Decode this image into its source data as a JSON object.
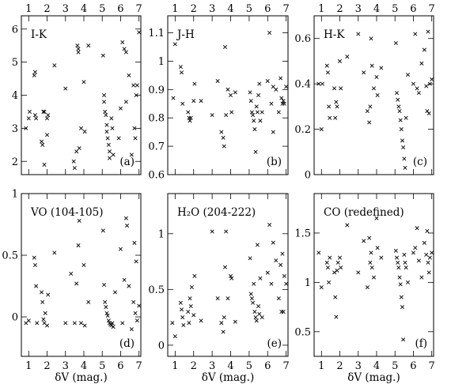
{
  "chart_data": [
    {
      "type": "scatter",
      "panel_label": "(a)",
      "title": "I-K",
      "xlabel": "",
      "xlim": [
        0.6,
        7.1
      ],
      "ylim": [
        1.6,
        6.4
      ],
      "yticks": [
        2,
        3,
        4,
        5,
        6
      ],
      "ytick_labels": [
        "2",
        "3",
        "4",
        "5",
        "6"
      ],
      "x": [
        0.85,
        1.0,
        1.05,
        1.3,
        1.35,
        1.35,
        1.4,
        1.7,
        1.75,
        1.8,
        1.85,
        1.85,
        2.0,
        2.05,
        2.0,
        2.4,
        3.0,
        3.45,
        3.5,
        3.6,
        3.65,
        3.7,
        3.7,
        3.75,
        3.85,
        4.0,
        4.05,
        4.25,
        5.05,
        5.1,
        5.1,
        5.15,
        5.2,
        5.25,
        5.25,
        5.3,
        5.35,
        5.4,
        5.4,
        5.5,
        5.55,
        5.6,
        5.9,
        6.0,
        6.1,
        6.2,
        6.3,
        6.3,
        6.45,
        6.6,
        6.7,
        6.75,
        6.8,
        6.85,
        6.9,
        7.0
      ],
      "y": [
        3.0,
        3.3,
        3.5,
        4.6,
        4.7,
        3.4,
        3.3,
        2.6,
        2.5,
        3.5,
        3.5,
        1.9,
        3.3,
        3.4,
        2.8,
        4.9,
        4.2,
        2.0,
        1.8,
        2.3,
        5.5,
        5.4,
        5.3,
        2.4,
        3.0,
        4.4,
        2.9,
        5.5,
        5.2,
        4.0,
        3.8,
        3.5,
        3.4,
        3.1,
        2.9,
        2.7,
        2.5,
        2.3,
        2.1,
        3.3,
        3.0,
        2.2,
        2.7,
        3.6,
        5.6,
        5.4,
        5.3,
        3.8,
        4.6,
        2.2,
        4.3,
        3.0,
        2.7,
        4.0,
        4.3,
        5.9
      ]
    },
    {
      "type": "scatter",
      "panel_label": "(b)",
      "title": "J-H",
      "xlabel": "",
      "xlim": [
        0.6,
        7.1
      ],
      "ylim": [
        0.6,
        1.16
      ],
      "yticks": [
        0.6,
        0.7,
        0.8,
        0.9,
        1.0,
        1.1
      ],
      "ytick_labels": [
        "0.6",
        "0.7",
        "0.8",
        "0.9",
        "1",
        "1.1"
      ],
      "x": [
        0.9,
        1.0,
        1.3,
        1.35,
        1.4,
        1.7,
        1.75,
        1.8,
        1.85,
        2.0,
        2.05,
        2.4,
        3.0,
        3.3,
        3.5,
        3.6,
        3.65,
        3.7,
        3.75,
        3.85,
        4.0,
        4.05,
        4.25,
        5.05,
        5.1,
        5.15,
        5.2,
        5.25,
        5.3,
        5.35,
        5.4,
        5.45,
        5.5,
        5.55,
        5.6,
        5.7,
        6.0,
        6.1,
        6.2,
        6.3,
        6.3,
        6.45,
        6.6,
        6.7,
        6.75,
        6.8,
        6.85,
        6.9,
        7.0
      ],
      "y": [
        0.87,
        1.06,
        0.98,
        0.96,
        0.85,
        0.82,
        0.8,
        0.79,
        0.8,
        0.86,
        0.92,
        0.86,
        0.81,
        0.93,
        0.75,
        0.73,
        0.7,
        1.05,
        0.81,
        0.9,
        0.88,
        0.82,
        0.89,
        0.89,
        0.86,
        0.82,
        0.81,
        0.79,
        0.76,
        0.68,
        0.84,
        0.82,
        0.88,
        0.92,
        0.79,
        0.82,
        0.93,
        1.1,
        0.85,
        0.91,
        0.75,
        0.9,
        0.82,
        0.94,
        0.87,
        0.85,
        0.86,
        0.85,
        0.91
      ]
    },
    {
      "type": "scatter",
      "panel_label": "(c)",
      "title": "H-K",
      "xlabel": "",
      "xlim": [
        0.6,
        7.1
      ],
      "ylim": [
        0.0,
        0.7
      ],
      "yticks": [
        0,
        0.2,
        0.4,
        0.6
      ],
      "ytick_labels": [
        "0",
        "0.2",
        "0.4",
        "0.6"
      ],
      "x": [
        0.85,
        1.0,
        1.05,
        1.3,
        1.35,
        1.4,
        1.45,
        1.7,
        1.75,
        1.8,
        1.85,
        2.0,
        2.05,
        2.4,
        3.0,
        3.3,
        3.5,
        3.6,
        3.65,
        3.7,
        3.75,
        3.85,
        4.0,
        4.05,
        4.25,
        5.05,
        5.1,
        5.15,
        5.2,
        5.25,
        5.3,
        5.35,
        5.4,
        5.45,
        5.5,
        5.55,
        5.6,
        5.7,
        6.0,
        6.1,
        6.2,
        6.3,
        6.45,
        6.6,
        6.7,
        6.75,
        6.8,
        6.85,
        6.9,
        7.0
      ],
      "y": [
        0.4,
        0.2,
        0.4,
        0.48,
        0.45,
        0.3,
        0.25,
        0.38,
        0.25,
        0.32,
        0.3,
        0.5,
        0.38,
        0.52,
        0.62,
        0.45,
        0.28,
        0.23,
        0.3,
        0.6,
        0.48,
        0.38,
        0.43,
        0.35,
        0.47,
        0.58,
        0.36,
        0.33,
        0.3,
        0.28,
        0.24,
        0.2,
        0.15,
        0.12,
        0.07,
        0.03,
        0.25,
        0.44,
        0.4,
        0.62,
        0.38,
        0.36,
        0.49,
        0.55,
        0.39,
        0.28,
        0.63,
        0.27,
        0.4,
        0.42
      ]
    },
    {
      "type": "scatter",
      "panel_label": "(d)",
      "title": "VO (104-105)",
      "xlabel": "δV (mag.)",
      "xlim": [
        0.6,
        7.1
      ],
      "ylim": [
        -0.32,
        1.0
      ],
      "yticks": [
        0,
        0.5,
        1
      ],
      "ytick_labels": [
        "0",
        "0.5",
        "1"
      ],
      "x": [
        0.85,
        1.0,
        1.3,
        1.35,
        1.4,
        1.45,
        1.7,
        1.75,
        1.8,
        1.85,
        1.9,
        2.0,
        2.05,
        2.4,
        3.0,
        3.3,
        3.5,
        3.6,
        3.7,
        3.75,
        3.85,
        4.0,
        4.05,
        4.25,
        5.05,
        5.1,
        5.15,
        5.2,
        5.25,
        5.3,
        5.35,
        5.4,
        5.45,
        5.5,
        5.55,
        5.6,
        5.7,
        6.0,
        6.1,
        6.2,
        6.3,
        6.35,
        6.45,
        6.6,
        6.7,
        6.75,
        6.8,
        6.85,
        6.9,
        7.0
      ],
      "y": [
        -0.05,
        -0.03,
        0.48,
        0.42,
        0.25,
        -0.05,
        0.2,
        0.12,
        -0.02,
        -0.05,
        0.03,
        -0.07,
        0.18,
        0.52,
        -0.05,
        0.35,
        -0.05,
        0.27,
        0.58,
        0.78,
        -0.05,
        0.42,
        -0.07,
        0.12,
        0.7,
        0.26,
        0.12,
        0.08,
        0.03,
        0.01,
        -0.03,
        -0.05,
        -0.06,
        -0.07,
        -0.05,
        -0.08,
        0.2,
        0.55,
        -0.05,
        0.3,
        0.8,
        0.74,
        0.25,
        -0.1,
        0.12,
        0.6,
        0.03,
        0.45,
        -0.03,
        0.09
      ]
    },
    {
      "type": "scatter",
      "panel_label": "(e)",
      "title": "H₂O (204-222)",
      "xlabel": "δV (mag.)",
      "xlim": [
        0.6,
        7.1
      ],
      "ylim": [
        -0.1,
        1.36
      ],
      "yticks": [
        0,
        0.5,
        1
      ],
      "ytick_labels": [
        "0",
        "0.5",
        "1"
      ],
      "x": [
        0.85,
        1.0,
        1.3,
        1.35,
        1.4,
        1.45,
        1.7,
        1.75,
        1.8,
        1.85,
        1.9,
        2.0,
        2.05,
        2.4,
        3.0,
        3.3,
        3.5,
        3.6,
        3.65,
        3.7,
        3.75,
        3.85,
        4.0,
        4.05,
        4.25,
        5.05,
        5.1,
        5.15,
        5.2,
        5.25,
        5.3,
        5.35,
        5.4,
        5.45,
        5.5,
        5.55,
        5.6,
        5.7,
        6.0,
        6.1,
        6.2,
        6.3,
        6.45,
        6.6,
        6.7,
        6.75,
        6.8,
        6.85,
        6.9,
        7.0
      ],
      "y": [
        0.2,
        0.08,
        0.38,
        0.32,
        0.25,
        0.18,
        0.3,
        0.2,
        0.42,
        0.35,
        0.52,
        0.27,
        0.62,
        0.22,
        1.02,
        0.42,
        0.2,
        0.12,
        0.25,
        0.7,
        1.02,
        0.42,
        0.62,
        0.6,
        0.21,
        0.78,
        0.46,
        0.42,
        0.38,
        0.55,
        0.3,
        0.25,
        0.22,
        0.9,
        0.35,
        0.28,
        0.6,
        0.25,
        0.65,
        1.08,
        0.55,
        0.92,
        0.76,
        0.42,
        0.72,
        0.3,
        0.82,
        0.3,
        0.62,
        0.55
      ]
    },
    {
      "type": "scatter",
      "panel_label": "(f)",
      "title": "CO (redefined)",
      "xlabel": "δV (mag.)",
      "xlim": [
        0.6,
        7.1
      ],
      "ylim": [
        0.25,
        1.9
      ],
      "yticks": [
        0.5,
        1,
        1.5
      ],
      "ytick_labels": [
        "0.5",
        "1",
        "1.5"
      ],
      "x": [
        0.85,
        1.0,
        1.3,
        1.35,
        1.4,
        1.45,
        1.7,
        1.75,
        1.8,
        1.85,
        1.9,
        2.0,
        2.05,
        2.4,
        3.0,
        3.3,
        3.5,
        3.6,
        3.65,
        3.7,
        3.75,
        3.85,
        4.0,
        4.05,
        4.25,
        5.05,
        5.1,
        5.15,
        5.2,
        5.25,
        5.3,
        5.35,
        5.4,
        5.45,
        5.5,
        5.55,
        5.6,
        5.7,
        6.0,
        6.1,
        6.2,
        6.3,
        6.45,
        6.6,
        6.7,
        6.75,
        6.8,
        6.85,
        6.9,
        7.0
      ],
      "y": [
        1.3,
        0.95,
        1.2,
        1.15,
        1.0,
        1.25,
        1.1,
        0.85,
        0.65,
        1.12,
        1.2,
        1.25,
        1.15,
        1.58,
        1.1,
        1.42,
        0.95,
        1.45,
        1.2,
        1.3,
        1.15,
        1.05,
        1.65,
        1.35,
        1.25,
        1.32,
        1.25,
        1.2,
        1.15,
        1.05,
        0.98,
        0.85,
        0.75,
        0.42,
        1.28,
        1.2,
        1.15,
        1.0,
        1.3,
        1.35,
        1.55,
        1.22,
        1.05,
        1.4,
        1.28,
        1.52,
        1.2,
        1.1,
        1.25,
        1.3
      ]
    }
  ],
  "shared_x": {
    "ticks": [
      1,
      2,
      3,
      4,
      5,
      6,
      7
    ],
    "tick_labels": [
      "1",
      "2",
      "3",
      "4",
      "5",
      "6",
      "7"
    ]
  }
}
